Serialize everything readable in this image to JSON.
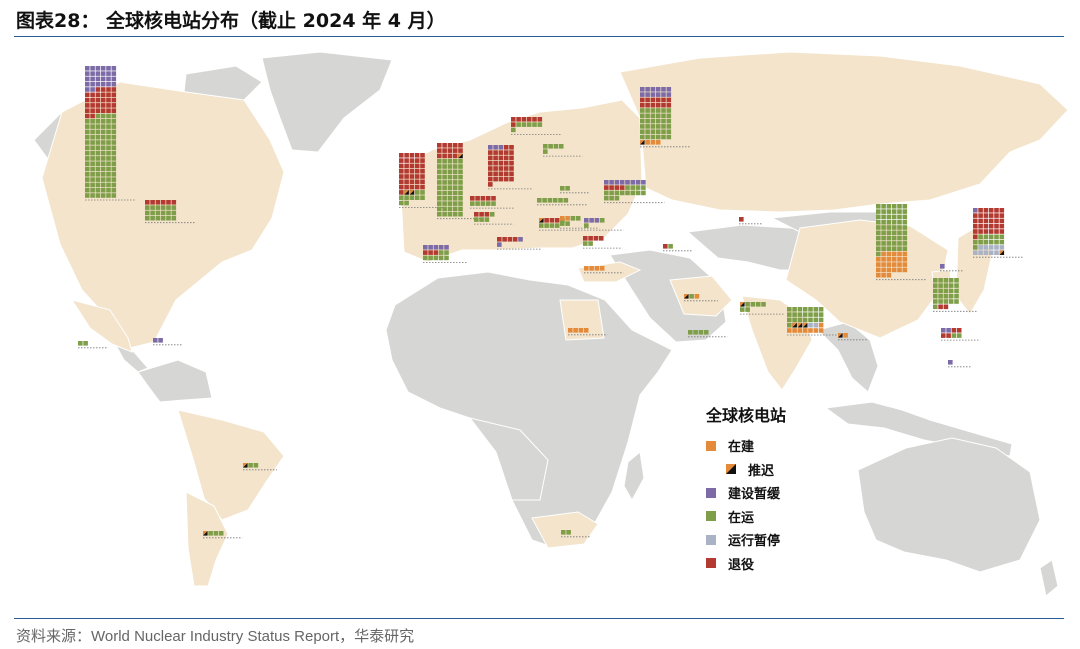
{
  "title": "图表28：  全球核电站分布（截止 2024 年 4 月）",
  "source": "资料来源：World Nuclear Industry Status Report，华泰研究",
  "colors": {
    "under_construction": "#e48b3b",
    "construction_suspended": "#7c6ba6",
    "operating": "#7f9e49",
    "long_term_outage": "#a9b3c5",
    "closed": "#b23a31",
    "land_highlight": "#f3e4cb",
    "land_other": "#d6d6d4",
    "ocean": "#ffffff"
  },
  "legend": {
    "title": "全球核电站",
    "items": [
      {
        "label": "在建",
        "status": "under_construction",
        "icon": "square",
        "indent": false
      },
      {
        "label": "推迟",
        "status": "delayed",
        "icon": "black-orange-triangle",
        "indent": true
      },
      {
        "label": "建设暂缓",
        "status": "construction_suspended",
        "icon": "square",
        "indent": false
      },
      {
        "label": "在运",
        "status": "operating",
        "icon": "square",
        "indent": false
      },
      {
        "label": "运行暂停",
        "status": "long_term_outage",
        "icon": "square",
        "indent": false
      },
      {
        "label": "退役",
        "status": "closed",
        "icon": "square",
        "indent": false
      }
    ]
  },
  "reactor_groups": [
    {
      "region": "USA",
      "cols": 6,
      "segments": [
        {
          "s": "construction_suspended",
          "n": 26
        },
        {
          "s": "closed",
          "n": 30
        },
        {
          "s": "operating",
          "n": 94
        }
      ]
    },
    {
      "region": "Canada",
      "cols": 6,
      "segments": [
        {
          "s": "closed",
          "n": 6
        },
        {
          "s": "operating",
          "n": 18
        }
      ]
    },
    {
      "region": "Mexico",
      "cols": 2,
      "segments": [
        {
          "s": "operating",
          "n": 2
        }
      ]
    },
    {
      "region": "Cuba",
      "cols": 2,
      "segments": [
        {
          "s": "construction_suspended",
          "n": 2
        }
      ]
    },
    {
      "region": "Brazil",
      "cols": 3,
      "segments": [
        {
          "s": "delayed",
          "n": 1
        },
        {
          "s": "operating",
          "n": 2
        }
      ]
    },
    {
      "region": "Argentina",
      "cols": 4,
      "segments": [
        {
          "s": "delayed",
          "n": 1
        },
        {
          "s": "operating",
          "n": 3
        }
      ]
    },
    {
      "region": "UK",
      "cols": 5,
      "segments": [
        {
          "s": "closed",
          "n": 36
        },
        {
          "s": "delayed",
          "n": 2
        },
        {
          "s": "operating",
          "n": 9
        }
      ]
    },
    {
      "region": "France",
      "cols": 5,
      "segments": [
        {
          "s": "closed",
          "n": 14
        },
        {
          "s": "delayed",
          "n": 1
        },
        {
          "s": "operating",
          "n": 55
        }
      ]
    },
    {
      "region": "Spain",
      "cols": 5,
      "segments": [
        {
          "s": "construction_suspended",
          "n": 5
        },
        {
          "s": "closed",
          "n": 3
        },
        {
          "s": "operating",
          "n": 7
        }
      ]
    },
    {
      "region": "Germany",
      "cols": 5,
      "segments": [
        {
          "s": "construction_suspended",
          "n": 3
        },
        {
          "s": "closed",
          "n": 33
        }
      ]
    },
    {
      "region": "Sweden",
      "cols": 6,
      "segments": [
        {
          "s": "closed",
          "n": 7
        },
        {
          "s": "operating",
          "n": 6
        }
      ]
    },
    {
      "region": "Finland",
      "cols": 4,
      "segments": [
        {
          "s": "operating",
          "n": 5
        }
      ]
    },
    {
      "region": "Belgium",
      "cols": 5,
      "segments": [
        {
          "s": "closed",
          "n": 5
        },
        {
          "s": "operating",
          "n": 5
        }
      ]
    },
    {
      "region": "Switzerland",
      "cols": 4,
      "segments": [
        {
          "s": "closed",
          "n": 3
        },
        {
          "s": "operating",
          "n": 4
        }
      ]
    },
    {
      "region": "Italy",
      "cols": 5,
      "segments": [
        {
          "s": "closed",
          "n": 4
        },
        {
          "s": "construction_suspended",
          "n": 2
        }
      ]
    },
    {
      "region": "Czechia",
      "cols": 6,
      "segments": [
        {
          "s": "operating",
          "n": 6
        }
      ]
    },
    {
      "region": "Slovakia",
      "cols": 5,
      "segments": [
        {
          "s": "delayed",
          "n": 1
        },
        {
          "s": "closed",
          "n": 3
        },
        {
          "s": "operating",
          "n": 5
        }
      ]
    },
    {
      "region": "Hungary",
      "cols": 4,
      "segments": [
        {
          "s": "under_construction",
          "n": 2
        },
        {
          "s": "operating",
          "n": 4
        }
      ]
    },
    {
      "region": "Romania",
      "cols": 4,
      "segments": [
        {
          "s": "construction_suspended",
          "n": 3
        },
        {
          "s": "operating",
          "n": 2
        }
      ]
    },
    {
      "region": "Bulgaria",
      "cols": 4,
      "segments": [
        {
          "s": "closed",
          "n": 4
        },
        {
          "s": "operating",
          "n": 2
        }
      ]
    },
    {
      "region": "Ukraine",
      "cols": 8,
      "segments": [
        {
          "s": "construction_suspended",
          "n": 8
        },
        {
          "s": "closed",
          "n": 4
        },
        {
          "s": "operating",
          "n": 15
        }
      ]
    },
    {
      "region": "Belarus",
      "cols": 2,
      "segments": [
        {
          "s": "operating",
          "n": 2
        }
      ]
    },
    {
      "region": "Armenia",
      "cols": 2,
      "segments": [
        {
          "s": "closed",
          "n": 1
        },
        {
          "s": "operating",
          "n": 1
        }
      ]
    },
    {
      "region": "Russia",
      "cols": 6,
      "segments": [
        {
          "s": "construction_suspended",
          "n": 12
        },
        {
          "s": "closed",
          "n": 12
        },
        {
          "s": "operating",
          "n": 36
        },
        {
          "s": "delayed",
          "n": 1
        },
        {
          "s": "under_construction",
          "n": 3
        }
      ]
    },
    {
      "region": "Kazakhstan",
      "cols": 1,
      "segments": [
        {
          "s": "closed",
          "n": 1
        }
      ]
    },
    {
      "region": "Turkey",
      "cols": 4,
      "segments": [
        {
          "s": "under_construction",
          "n": 4
        }
      ]
    },
    {
      "region": "Egypt",
      "cols": 4,
      "segments": [
        {
          "s": "under_construction",
          "n": 4
        }
      ]
    },
    {
      "region": "Iran",
      "cols": 3,
      "segments": [
        {
          "s": "delayed",
          "n": 1
        },
        {
          "s": "operating",
          "n": 1
        },
        {
          "s": "under_construction",
          "n": 1
        }
      ]
    },
    {
      "region": "UAE",
      "cols": 4,
      "segments": [
        {
          "s": "operating",
          "n": 4
        }
      ]
    },
    {
      "region": "Pakistan",
      "cols": 5,
      "segments": [
        {
          "s": "delayed",
          "n": 1
        },
        {
          "s": "operating",
          "n": 6
        }
      ]
    },
    {
      "region": "India",
      "cols": 7,
      "segments": [
        {
          "s": "operating",
          "n": 22
        },
        {
          "s": "delayed",
          "n": 3
        },
        {
          "s": "long_term_outage",
          "n": 2
        },
        {
          "s": "under_construction",
          "n": 8
        }
      ]
    },
    {
      "region": "Bangladesh",
      "cols": 2,
      "segments": [
        {
          "s": "delayed",
          "n": 1
        },
        {
          "s": "under_construction",
          "n": 1
        }
      ]
    },
    {
      "region": "China",
      "cols": 6,
      "segments": [
        {
          "s": "operating",
          "n": 55
        },
        {
          "s": "under_construction",
          "n": 26
        }
      ]
    },
    {
      "region": "South Korea",
      "cols": 5,
      "segments": [
        {
          "s": "operating",
          "n": 26
        },
        {
          "s": "closed",
          "n": 2
        }
      ]
    },
    {
      "region": "Taiwan",
      "cols": 4,
      "segments": [
        {
          "s": "construction_suspended",
          "n": 2
        },
        {
          "s": "closed",
          "n": 4
        },
        {
          "s": "operating",
          "n": 2
        }
      ]
    },
    {
      "region": "Philippines",
      "cols": 1,
      "segments": [
        {
          "s": "construction_suspended",
          "n": 1
        }
      ]
    },
    {
      "region": "Japan",
      "cols": 6,
      "segments": [
        {
          "s": "construction_suspended",
          "n": 1
        },
        {
          "s": "closed",
          "n": 30
        },
        {
          "s": "operating",
          "n": 12
        },
        {
          "s": "long_term_outage",
          "n": 10
        },
        {
          "s": "delayed",
          "n": 1
        }
      ]
    },
    {
      "region": "Vietnam",
      "cols": 1,
      "segments": [
        {
          "s": "construction_suspended",
          "n": 1
        }
      ]
    },
    {
      "region": "South Africa",
      "cols": 2,
      "segments": [
        {
          "s": "operating",
          "n": 2
        }
      ]
    }
  ]
}
